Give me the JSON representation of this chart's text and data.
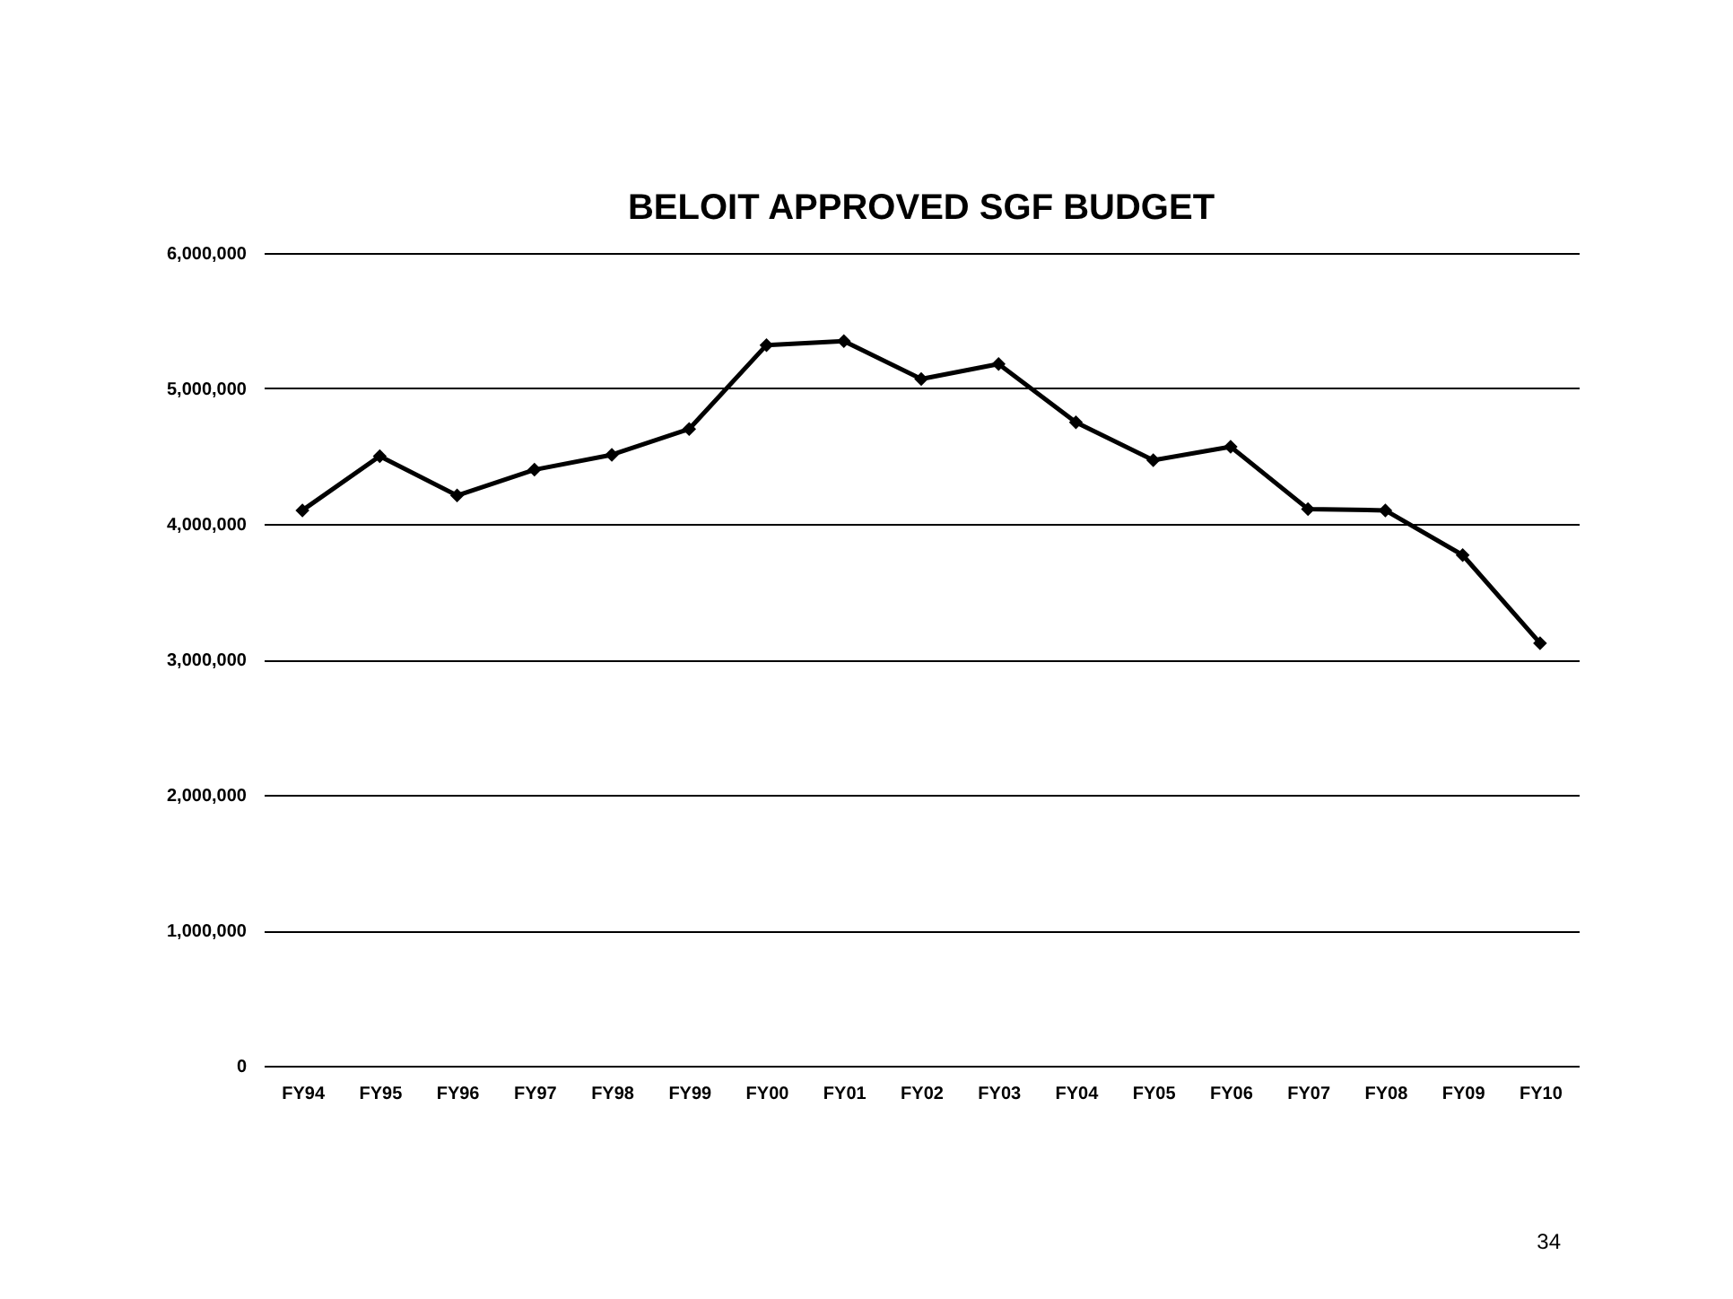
{
  "chart_data": {
    "type": "line",
    "title": "BELOIT APPROVED SGF BUDGET",
    "categories": [
      "FY94",
      "FY95",
      "FY96",
      "FY97",
      "FY98",
      "FY99",
      "FY00",
      "FY01",
      "FY02",
      "FY03",
      "FY04",
      "FY05",
      "FY06",
      "FY07",
      "FY08",
      "FY09",
      "FY10"
    ],
    "series": [
      {
        "color": "#000000",
        "values": [
          4100000,
          4500000,
          4210000,
          4400000,
          4510000,
          4700000,
          5320000,
          5350000,
          5070000,
          5180000,
          4750000,
          4470000,
          4570000,
          4110000,
          4100000,
          3770000,
          3120000
        ]
      }
    ],
    "ylim": [
      0,
      6000000
    ],
    "yticks": [
      {
        "value": 0,
        "label": "0"
      },
      {
        "value": 1000000,
        "label": "1,000,000"
      },
      {
        "value": 2000000,
        "label": "2,000,000"
      },
      {
        "value": 3000000,
        "label": "3,000,000"
      },
      {
        "value": 4000000,
        "label": "4,000,000"
      },
      {
        "value": 5000000,
        "label": "5,000,000"
      },
      {
        "value": 6000000,
        "label": "6,000,000"
      }
    ],
    "grid": "y",
    "legend": false,
    "marker": "diamond",
    "line_style": "solid",
    "annotations": [
      "34"
    ]
  }
}
